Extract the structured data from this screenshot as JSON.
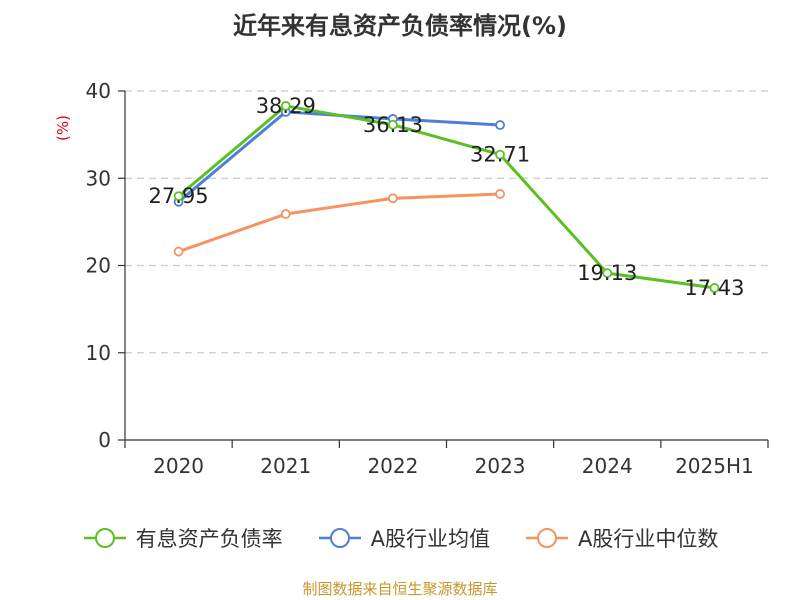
{
  "source_text": "制图数据来自恒生聚源数据库",
  "colors": {
    "series_green": "#5cc022",
    "series_blue": "#4e7fd8",
    "series_orange": "#f59362",
    "axis": "#333333",
    "grid": "#cccccc",
    "ylabel": "#e0001b",
    "source": "#c8962e"
  },
  "chart_data": {
    "type": "line",
    "title": "近年来有息资产负债率情况(%)",
    "ylabel": "(%)",
    "xlabel": "",
    "categories": [
      "2020",
      "2021",
      "2022",
      "2023",
      "2024",
      "2025H1"
    ],
    "ylim": [
      0,
      40
    ],
    "yticks": [
      0,
      10,
      20,
      30,
      40
    ],
    "grid": true,
    "legend_position": "bottom",
    "series": [
      {
        "name": "有息资产负债率",
        "color": "#5cc022",
        "values": [
          27.95,
          38.29,
          36.13,
          32.71,
          19.13,
          17.43
        ],
        "labels": [
          "27.95",
          "38.29",
          "36.13",
          "32.71",
          "19.13",
          "17.43"
        ]
      },
      {
        "name": "A股行业均值",
        "color": "#4e7fd8",
        "values": [
          27.3,
          37.6,
          36.8,
          36.1,
          null,
          null
        ]
      },
      {
        "name": "A股行业中位数",
        "color": "#f59362",
        "values": [
          21.6,
          25.9,
          27.7,
          28.2,
          null,
          null
        ]
      }
    ]
  }
}
